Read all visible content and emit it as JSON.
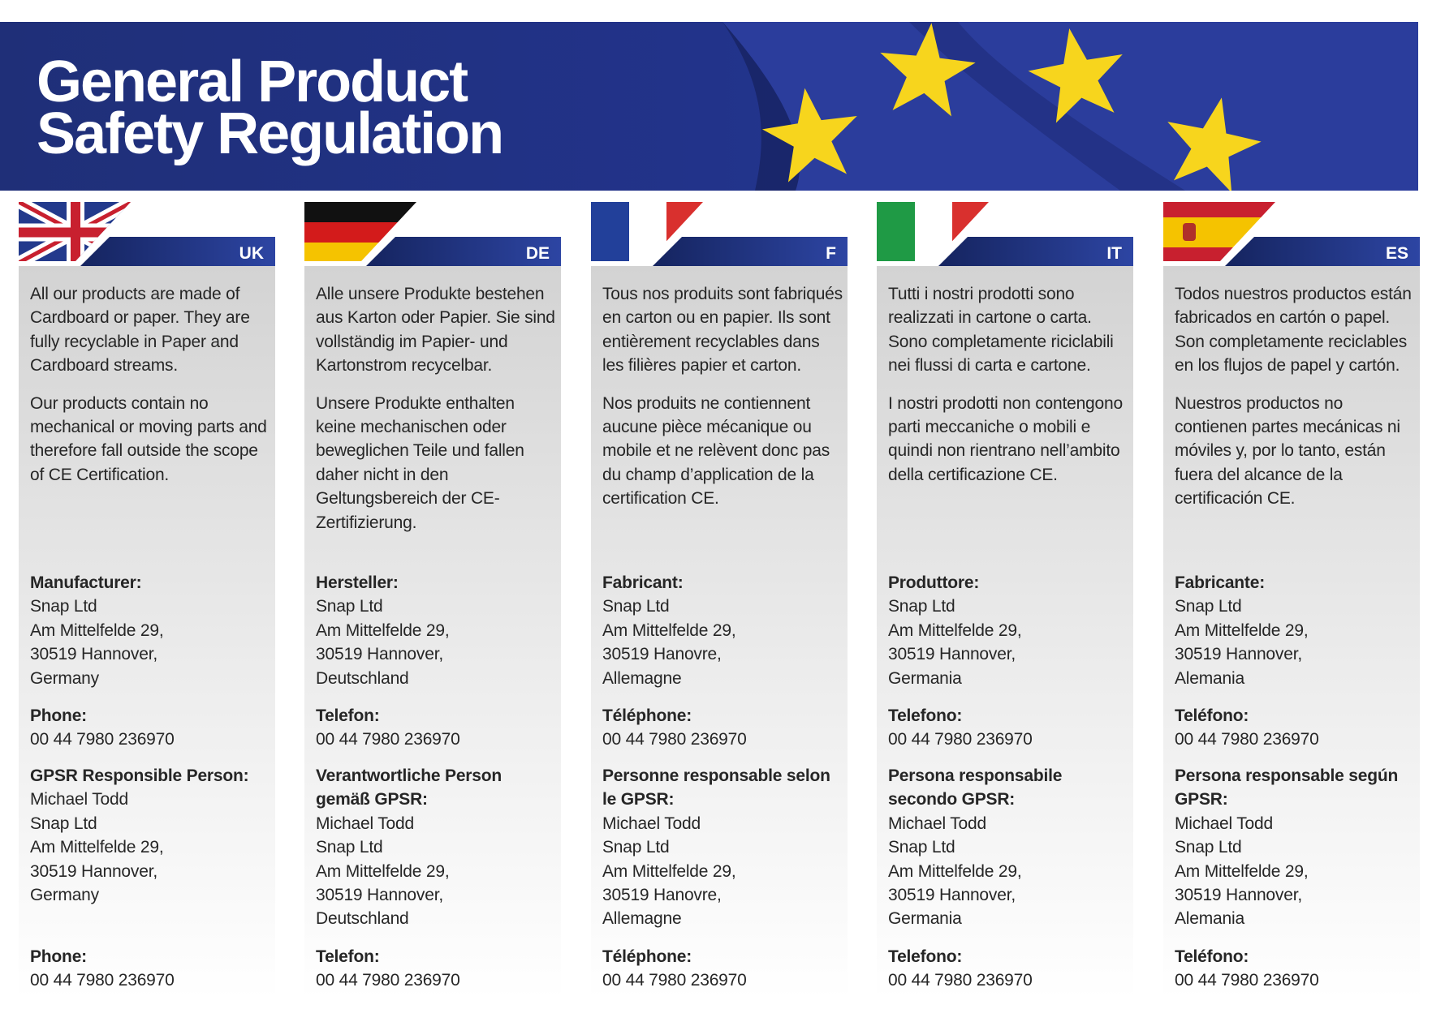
{
  "header": {
    "title": [
      "General Product",
      "Safety Regulation"
    ]
  },
  "columns": [
    {
      "code": "UK",
      "intro": [
        "All our products are made of Cardboard or paper. They are fully recyclable in Paper and Cardboard streams.",
        "Our products contain no mechanical or moving parts and therefore fall outside the scope of CE Certification."
      ],
      "manufacturer": {
        "label": "Manufacturer:",
        "lines": [
          "Snap Ltd",
          "Am Mittelfelde 29,",
          "30519 Hannover,",
          "Germany"
        ]
      },
      "phone": {
        "label": "Phone:",
        "number": "00 44 7980 236970"
      },
      "responsible": {
        "label": "GPSR Responsible Person:",
        "lines": [
          "Michael Todd",
          "Snap Ltd",
          "Am Mittelfelde 29,",
          "30519 Hannover,",
          "Germany"
        ]
      },
      "responsible_phone": {
        "label": "Phone:",
        "number": "00 44 7980 236970"
      }
    },
    {
      "code": "DE",
      "intro": [
        "Alle unsere Produkte bestehen aus Karton oder Papier. Sie sind vollständig im Papier- und Kartonstrom recycelbar.",
        "Unsere Produkte enthalten keine mechanischen oder beweglichen Teile und fallen daher nicht in den Geltungsbereich der CE-Zertifizierung."
      ],
      "manufacturer": {
        "label": "Hersteller:",
        "lines": [
          "Snap Ltd",
          "Am Mittelfelde 29,",
          "30519 Hannover,",
          "Deutschland"
        ]
      },
      "phone": {
        "label": "Telefon:",
        "number": "00 44 7980 236970"
      },
      "responsible": {
        "label": "Verantwortliche Person gemäß GPSR:",
        "lines": [
          "Michael Todd",
          "Snap Ltd",
          "Am Mittelfelde 29,",
          "30519 Hannover,",
          "Deutschland"
        ]
      },
      "responsible_phone": {
        "label": "Telefon:",
        "number": "00 44 7980 236970"
      }
    },
    {
      "code": "F",
      "intro": [
        "Tous nos produits sont fabriqués en carton ou en papier. Ils sont entièrement recyclables dans les filières papier et carton.",
        "Nos produits ne contiennent aucune pièce mécanique ou mobile et ne relèvent donc pas du champ d’application de la certification CE."
      ],
      "manufacturer": {
        "label": "Fabricant:",
        "lines": [
          "Snap Ltd",
          "Am Mittelfelde 29,",
          "30519 Hanovre,",
          "Allemagne"
        ]
      },
      "phone": {
        "label": "Téléphone:",
        "number": "00 44 7980 236970"
      },
      "responsible": {
        "label": "Personne responsable selon le GPSR:",
        "lines": [
          "Michael Todd",
          "Snap Ltd",
          "Am Mittelfelde 29,",
          "30519 Hanovre,",
          "Allemagne"
        ]
      },
      "responsible_phone": {
        "label": "Téléphone:",
        "number": "00 44 7980 236970"
      }
    },
    {
      "code": "IT",
      "intro": [
        "Tutti i nostri prodotti sono realizzati in cartone o carta. Sono completamente riciclabili nei flussi di carta e cartone.",
        "I nostri prodotti non contengono parti meccaniche o mobili e quindi non rientrano nell’ambito della certificazione CE."
      ],
      "manufacturer": {
        "label": "Produttore:",
        "lines": [
          "Snap Ltd",
          "Am Mittelfelde 29,",
          "30519 Hannover,",
          "Germania"
        ]
      },
      "phone": {
        "label": "Telefono:",
        "number": "00 44 7980 236970"
      },
      "responsible": {
        "label": "Persona responsabile secondo GPSR:",
        "lines": [
          "Michael Todd",
          "Snap Ltd",
          "Am Mittelfelde 29,",
          "30519 Hannover,",
          "Germania"
        ]
      },
      "responsible_phone": {
        "label": "Telefono:",
        "number": "00 44 7980 236970"
      }
    },
    {
      "code": "ES",
      "intro": [
        "Todos nuestros productos están fabricados en cartón o papel. Son completamente reciclables en los flujos de papel y cartón.",
        "Nuestros productos no contienen partes mecánicas ni móviles y, por lo tanto, están fuera del alcance de la certificación CE."
      ],
      "manufacturer": {
        "label": "Fabricante:",
        "lines": [
          "Snap Ltd",
          "Am Mittelfelde 29,",
          "30519 Hannover,",
          "Alemania"
        ]
      },
      "phone": {
        "label": "Teléfono:",
        "number": "00 44 7980 236970"
      },
      "responsible": {
        "label": "Persona responsable según GPSR:",
        "lines": [
          "Michael Todd",
          "Snap Ltd",
          "Am Mittelfelde 29,",
          "30519 Hannover,",
          "Alemania"
        ]
      },
      "responsible_phone": {
        "label": "Teléfono:",
        "number": "00 44 7980 236970"
      }
    }
  ]
}
